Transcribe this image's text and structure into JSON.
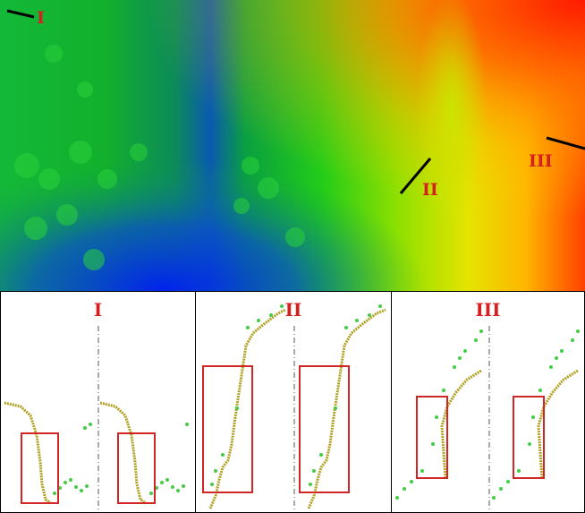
{
  "map": {
    "labels": [
      {
        "id": "I",
        "text": "I"
      },
      {
        "id": "II",
        "text": "II"
      },
      {
        "id": "III",
        "text": "III"
      }
    ],
    "colormap": [
      "#0a2bd6",
      "#00a0a0",
      "#14c814",
      "#8ee600",
      "#e8e800",
      "#ff9a00",
      "#ff2a00"
    ]
  },
  "panels": [
    {
      "id": "I",
      "title": "I"
    },
    {
      "id": "II",
      "title": "II"
    },
    {
      "id": "III",
      "title": "III"
    }
  ],
  "colors": {
    "label_red": "#d61f1f",
    "box_red": "#d12626",
    "ground_points": "#b0a020",
    "vegetation_points": "#44cc44",
    "profile_line": "#000000"
  }
}
